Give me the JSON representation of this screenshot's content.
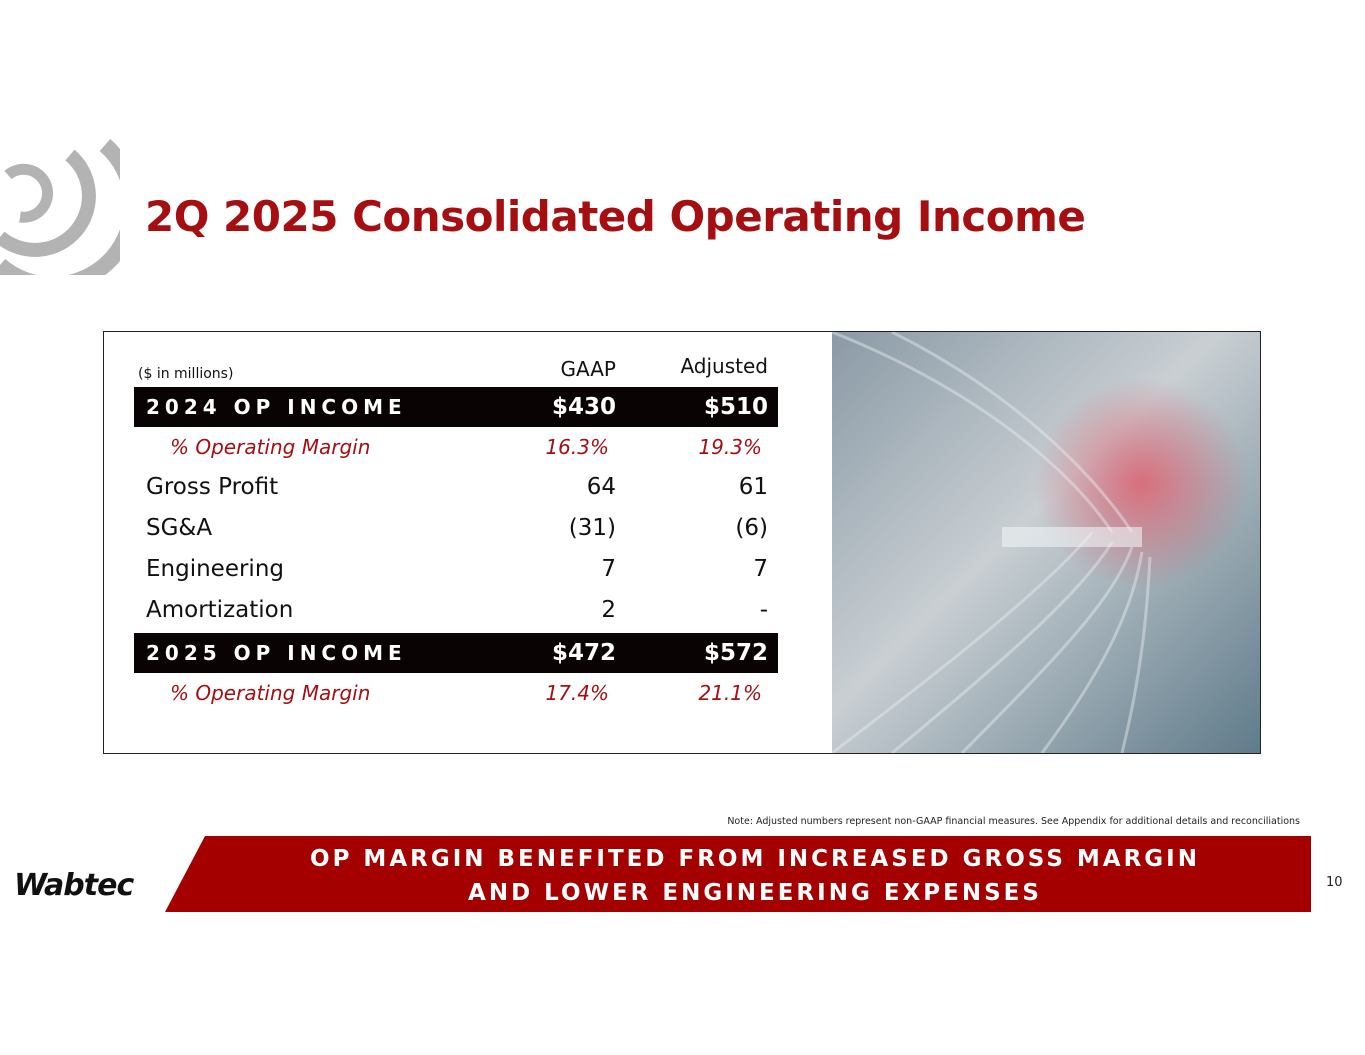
{
  "title": "2Q 2025 Consolidated Operating Income",
  "table": {
    "unit_note": "($ in millions)",
    "columns": [
      "GAAP",
      "Adjusted"
    ],
    "rows": [
      [
        "2024 OP INCOME",
        "$430",
        "$510"
      ],
      [
        "% Operating Margin",
        "16.3%",
        "19.3%"
      ],
      [
        "Gross Profit",
        "64",
        "61"
      ],
      [
        "SG&A",
        "(31)",
        "(6)"
      ],
      [
        "Engineering",
        "7",
        "7"
      ],
      [
        "Amortization",
        "2",
        "-"
      ],
      [
        "2025 OP INCOME",
        "$472",
        "$572"
      ],
      [
        "% Operating Margin",
        "17.4%",
        "21.1%"
      ]
    ]
  },
  "note": "Note:  Adjusted numbers represent non-GAAP financial measures.  See Appendix for additional details and reconciliations",
  "banner": [
    "OP MARGIN BENEFITED FROM INCREASED GROSS MARGIN",
    "AND LOWER ENGINEERING EXPENSES"
  ],
  "logo": "Wabtec",
  "page_number": "10"
}
